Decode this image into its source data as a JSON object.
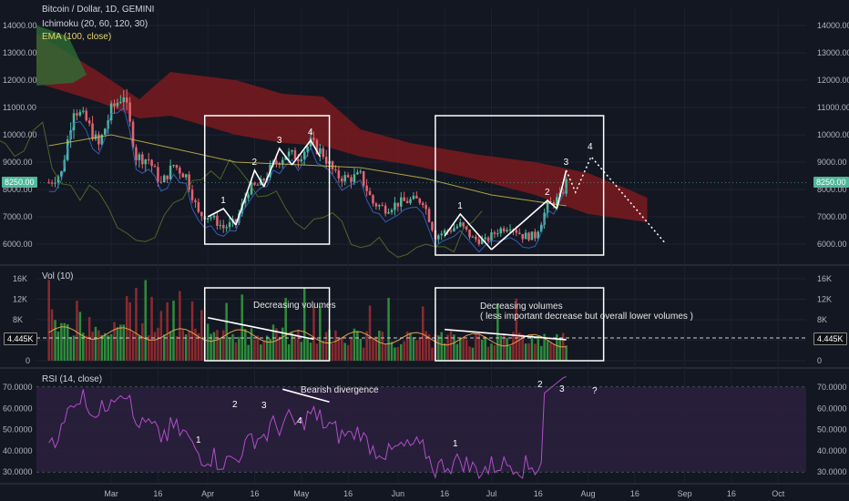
{
  "header": {
    "symbol": "Bitcoin / Dollar, 1D, GEMINI",
    "ichimoku": "Ichimoku (20, 60, 120, 30)",
    "ema": "EMA (100, close)",
    "vol_label": "Vol (10)",
    "rsi_label": "RSI (14, close)"
  },
  "colors": {
    "background": "#131722",
    "up": "#4fb89b",
    "down": "#e5626f",
    "ema": "#d4c44a",
    "cloud_bear": "#7a1a1f",
    "cloud_bull": "#2e6b35",
    "rsi_line": "#b04fc7",
    "rsi_band": "#2a1f3d"
  },
  "price_tags": {
    "price": "8250.00",
    "volume": "4.445K"
  },
  "chart_data": [
    {
      "type": "candlestick",
      "title": "Bitcoin / Dollar, 1D, GEMINI",
      "y_ticks": [
        "14000.00",
        "13000.00",
        "12000.00",
        "11000.00",
        "10000.00",
        "9000.00",
        "8000.00",
        "7000.00",
        "6000.00"
      ],
      "ylim": [
        5500,
        14300
      ],
      "x_ticks": [
        "Mar",
        "16",
        "Apr",
        "16",
        "May",
        "16",
        "Jun",
        "16",
        "Jul",
        "16",
        "Aug",
        "16",
        "Sep",
        "16",
        "Oct"
      ],
      "close_path": [
        [
          "2018-02-09",
          8250
        ],
        [
          "2018-02-13",
          8600
        ],
        [
          "2018-02-17",
          11000
        ],
        [
          "2018-02-21",
          10500
        ],
        [
          "2018-02-25",
          9600
        ],
        [
          "2018-03-01",
          10900
        ],
        [
          "2018-03-05",
          11500
        ],
        [
          "2018-03-09",
          9200
        ],
        [
          "2018-03-13",
          9100
        ],
        [
          "2018-03-17",
          8200
        ],
        [
          "2018-03-21",
          8900
        ],
        [
          "2018-03-25",
          8500
        ],
        [
          "2018-03-29",
          7100
        ],
        [
          "2018-04-02",
          7000
        ],
        [
          "2018-04-06",
          6600
        ],
        [
          "2018-04-10",
          6800
        ],
        [
          "2018-04-14",
          8000
        ],
        [
          "2018-04-18",
          8200
        ],
        [
          "2018-04-22",
          8900
        ],
        [
          "2018-04-26",
          9300
        ],
        [
          "2018-04-30",
          9200
        ],
        [
          "2018-05-04",
          9700
        ],
        [
          "2018-05-08",
          9300
        ],
        [
          "2018-05-12",
          8500
        ],
        [
          "2018-05-16",
          8400
        ],
        [
          "2018-05-20",
          8500
        ],
        [
          "2018-05-24",
          7500
        ],
        [
          "2018-05-28",
          7300
        ],
        [
          "2018-06-01",
          7500
        ],
        [
          "2018-06-05",
          7600
        ],
        [
          "2018-06-09",
          7600
        ],
        [
          "2018-06-13",
          6300
        ],
        [
          "2018-06-17",
          6500
        ],
        [
          "2018-06-21",
          6700
        ],
        [
          "2018-06-25",
          6200
        ],
        [
          "2018-06-29",
          6100
        ],
        [
          "2018-07-03",
          6500
        ],
        [
          "2018-07-07",
          6700
        ],
        [
          "2018-07-11",
          6300
        ],
        [
          "2018-07-15",
          6300
        ],
        [
          "2018-07-19",
          7400
        ],
        [
          "2018-07-23",
          7700
        ],
        [
          "2018-07-25",
          8250
        ]
      ],
      "ema_100": [
        [
          "2018-02-09",
          9600
        ],
        [
          "2018-03-01",
          10000
        ],
        [
          "2018-03-21",
          9500
        ],
        [
          "2018-04-10",
          9000
        ],
        [
          "2018-05-01",
          8900
        ],
        [
          "2018-05-20",
          8800
        ],
        [
          "2018-06-10",
          8400
        ],
        [
          "2018-07-01",
          7800
        ],
        [
          "2018-07-25",
          7400
        ]
      ],
      "waves": [
        {
          "label": "1",
          "points": [
            [
              "2018-04-01",
              7000
            ],
            [
              "2018-04-06",
              7300
            ],
            [
              "2018-04-10",
              6700
            ]
          ]
        },
        {
          "label": "2",
          "points": [
            [
              "2018-04-10",
              6700
            ],
            [
              "2018-04-16",
              8700
            ],
            [
              "2018-04-19",
              8100
            ]
          ]
        },
        {
          "label": "3",
          "points": [
            [
              "2018-04-19",
              8100
            ],
            [
              "2018-04-24",
              9500
            ],
            [
              "2018-04-28",
              8900
            ]
          ]
        },
        {
          "label": "4",
          "points": [
            [
              "2018-04-28",
              8900
            ],
            [
              "2018-05-04",
              9800
            ],
            [
              "2018-05-07",
              9200
            ]
          ]
        },
        {
          "label": "1",
          "points": [
            [
              "2018-06-16",
              6300
            ],
            [
              "2018-06-21",
              7100
            ],
            [
              "2018-07-01",
              5800
            ]
          ]
        },
        {
          "label": "2",
          "points": [
            [
              "2018-07-01",
              5800
            ],
            [
              "2018-07-19",
              7600
            ],
            [
              "2018-07-22",
              7300
            ]
          ]
        },
        {
          "label": "3",
          "points": [
            [
              "2018-07-22",
              7300
            ],
            [
              "2018-07-25",
              8700
            ]
          ]
        }
      ],
      "projection": [
        [
          "2018-07-25",
          8700
        ],
        [
          "2018-07-28",
          7900
        ],
        [
          "2018-08-02",
          9200
        ],
        [
          "2018-08-26",
          6000
        ]
      ],
      "projection_label": "4",
      "boxes": [
        {
          "x": [
            "2018-03-31",
            "2018-05-10"
          ],
          "y": [
            6000,
            10700
          ]
        },
        {
          "x": [
            "2018-06-13",
            "2018-08-06"
          ],
          "y": [
            5600,
            10700
          ]
        }
      ]
    },
    {
      "type": "bar",
      "title": "Vol (10)",
      "y_ticks": [
        "16K",
        "12K",
        "8K",
        "4K",
        "0"
      ],
      "ylim": [
        0,
        17000
      ],
      "annotations": [
        "Decreasing volumes",
        "Decreasing volumes",
        "( less important decrease but overall lower volumes )"
      ]
    },
    {
      "type": "line",
      "title": "RSI (14, close)",
      "y_ticks": [
        "70.0000",
        "60.0000",
        "50.0000",
        "40.0000",
        "30.0000"
      ],
      "ylim": [
        26,
        75
      ],
      "annotation": "Bearish divergence",
      "wave_labels": [
        "1",
        "2",
        "3",
        "4",
        "1",
        "2",
        "3",
        "?"
      ]
    }
  ]
}
